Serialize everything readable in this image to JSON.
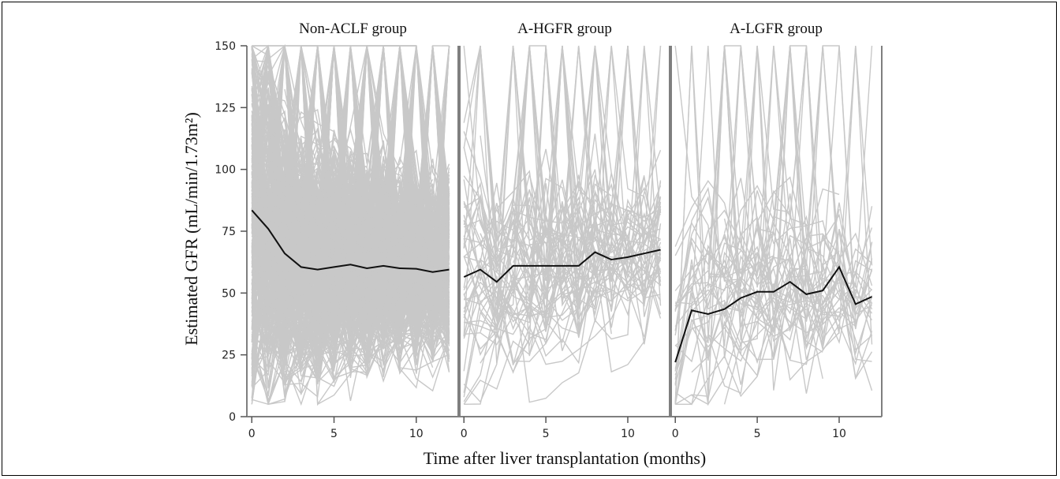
{
  "chart_data": {
    "type": "line",
    "xlabel": "Time after liver transplantation (months)",
    "ylabel": "Estimated GFR (mL/min/1.73m²)",
    "ylim": [
      0,
      150
    ],
    "yticks": [
      0,
      25,
      50,
      75,
      100,
      125,
      150
    ],
    "xticks": [
      0,
      5,
      10
    ],
    "xlim": [
      -0.3,
      12.6
    ],
    "grid": false,
    "colors": {
      "individual": "#c8c8c8",
      "mean": "#111111",
      "divider": "#7f7f7f"
    },
    "panels": [
      {
        "title": "Non-ACLF group",
        "mean": {
          "x": [
            0,
            1,
            2,
            3,
            4,
            5,
            6,
            7,
            8,
            9,
            10,
            11,
            12
          ],
          "y": [
            83.5,
            76,
            66,
            60.5,
            59.5,
            60.5,
            61.5,
            60,
            61,
            60,
            59.8,
            58.5,
            59.5
          ]
        }
      },
      {
        "title": "A-HGFR group",
        "mean": {
          "x": [
            0,
            1,
            2,
            3,
            4,
            5,
            6,
            7,
            8,
            9,
            10,
            11,
            12
          ],
          "y": [
            56.5,
            59.5,
            54.5,
            61,
            61,
            61,
            61,
            61,
            66.5,
            63.5,
            64.5,
            66,
            67.5
          ]
        }
      },
      {
        "title": "A-LGFR group",
        "mean": {
          "x": [
            0,
            1,
            2,
            3,
            4,
            5,
            6,
            7,
            8,
            9,
            10,
            11,
            12
          ],
          "y": [
            22,
            43,
            41.5,
            43.5,
            48,
            50.5,
            50.5,
            54.5,
            49.5,
            51,
            60.5,
            45.5,
            48.5
          ]
        }
      }
    ]
  }
}
